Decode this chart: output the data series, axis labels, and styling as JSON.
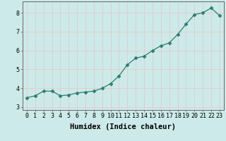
{
  "x": [
    0,
    1,
    2,
    3,
    4,
    5,
    6,
    7,
    8,
    9,
    10,
    11,
    12,
    13,
    14,
    15,
    16,
    17,
    18,
    19,
    20,
    21,
    22,
    23
  ],
  "y": [
    3.5,
    3.6,
    3.85,
    3.85,
    3.6,
    3.65,
    3.75,
    3.8,
    3.85,
    4.0,
    4.25,
    4.65,
    5.25,
    5.6,
    5.7,
    6.0,
    6.25,
    6.4,
    6.85,
    7.4,
    7.9,
    8.0,
    8.25,
    7.85
  ],
  "line_color": "#2e7d6e",
  "marker": "D",
  "marker_size": 2.5,
  "xlabel": "Humidex (Indice chaleur)",
  "xlim": [
    -0.5,
    23.5
  ],
  "ylim": [
    2.85,
    8.6
  ],
  "yticks": [
    3,
    4,
    5,
    6,
    7,
    8
  ],
  "xticks": [
    0,
    1,
    2,
    3,
    4,
    5,
    6,
    7,
    8,
    9,
    10,
    11,
    12,
    13,
    14,
    15,
    16,
    17,
    18,
    19,
    20,
    21,
    22,
    23
  ],
  "bg_color": "#cceaea",
  "grid_color": "#e8c8c8",
  "spine_color": "#666666",
  "tick_label_fontsize": 6.0,
  "xlabel_fontsize": 7.5,
  "linewidth": 0.9
}
